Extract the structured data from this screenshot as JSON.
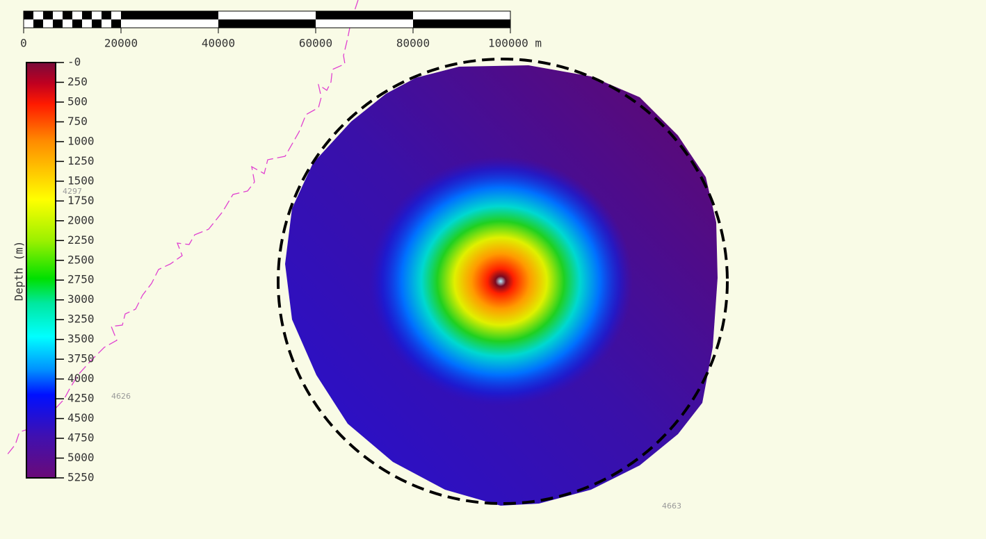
{
  "scale_bar": {
    "range": [
      0,
      100000
    ],
    "ticks": [
      0,
      20000,
      40000,
      60000,
      80000,
      {
        "value": 100000,
        "label": "100000 m"
      }
    ]
  },
  "colorbar": {
    "label": "Depth (m)",
    "range": [
      0,
      5250
    ],
    "ticks": [
      {
        "value": 0,
        "label": "-0"
      },
      250,
      500,
      750,
      1000,
      1250,
      1500,
      1750,
      2000,
      2250,
      2500,
      2750,
      3000,
      3250,
      3500,
      3750,
      4000,
      4250,
      4500,
      4750,
      5000,
      5250
    ]
  },
  "contour_labels": [
    "4297",
    "4626",
    "4663"
  ]
}
